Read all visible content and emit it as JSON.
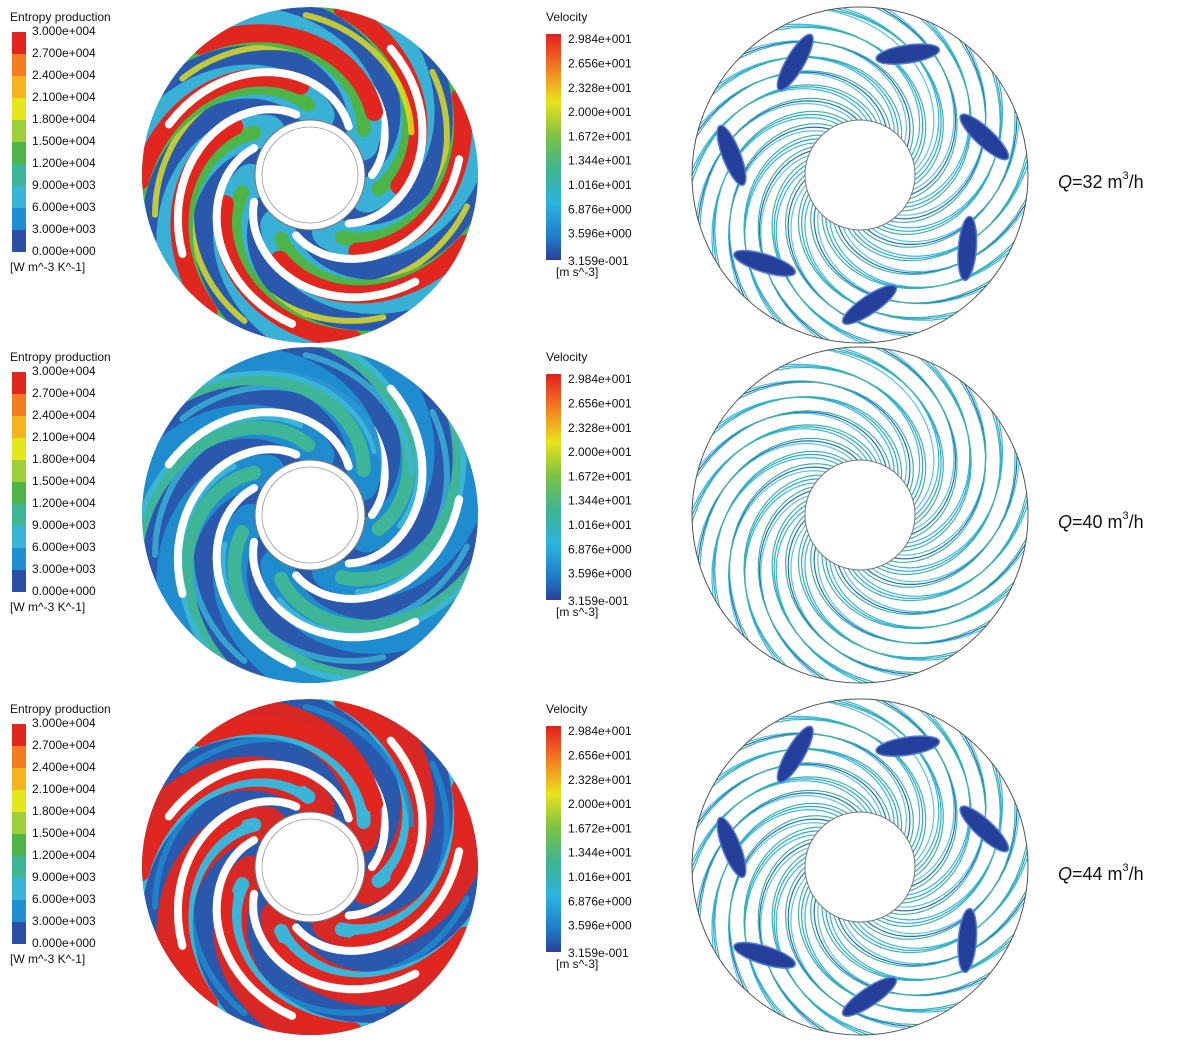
{
  "rows": [
    {
      "entropy_legend": {
        "title": "Entropy production",
        "labels": [
          "3.000e+004",
          "2.700e+004",
          "2.400e+004",
          "2.100e+004",
          "1.800e+004",
          "1.500e+004",
          "1.200e+004",
          "9.000e+003",
          "6.000e+003",
          "3.000e+003",
          "0.000e+000"
        ],
        "unit": "[W m^-3 K^-1]"
      },
      "velocity_legend": {
        "title": "Velocity",
        "labels": [
          "2.984e+001",
          "2.656e+001",
          "2.328e+001",
          "2.000e+001",
          "1.672e+001",
          "1.344e+001",
          "1.016e+001",
          "6.876e+000",
          "3.596e+000",
          "3.159e-001"
        ],
        "unit": "[m s^-3]"
      },
      "condition": {
        "symbol": "Q",
        "text": "=32 m",
        "sup": "3",
        "tail": "/h"
      }
    },
    {
      "entropy_legend": {
        "title": "Entropy production",
        "labels": [
          "3.000e+004",
          "2.700e+004",
          "2.400e+004",
          "2.100e+004",
          "1.800e+004",
          "1.500e+004",
          "1.200e+004",
          "9.000e+003",
          "6.000e+003",
          "3.000e+003",
          "0.000e+000"
        ],
        "unit": "[W m^-3 K^-1]"
      },
      "velocity_legend": {
        "title": "Velocity",
        "labels": [
          "2.984e+001",
          "2.656e+001",
          "2.328e+001",
          "2.000e+001",
          "1.672e+001",
          "1.344e+001",
          "1.016e+001",
          "6.876e+000",
          "3.596e+000",
          "3.159e-001"
        ],
        "unit": "[m s^-3]"
      },
      "condition": {
        "symbol": "Q",
        "text": "=40 m",
        "sup": "3",
        "tail": "/h"
      }
    },
    {
      "entropy_legend": {
        "title": "Entropy production",
        "labels": [
          "3.000e+004",
          "2.700e+004",
          "2.400e+004",
          "2.100e+004",
          "1.800e+004",
          "1.500e+004",
          "1.200e+004",
          "9.000e+003",
          "6.000e+003",
          "3.000e+003",
          "0.000e+000"
        ],
        "unit": "[W m^-3 K^-1]"
      },
      "velocity_legend": {
        "title": "Velocity",
        "labels": [
          "2.984e+001",
          "2.656e+001",
          "2.328e+001",
          "2.000e+001",
          "1.672e+001",
          "1.344e+001",
          "1.016e+001",
          "6.876e+000",
          "3.596e+000",
          "3.159e-001"
        ],
        "unit": "[m s^-3]"
      },
      "condition": {
        "symbol": "Q",
        "text": "=44 m",
        "sup": "3",
        "tail": "/h"
      }
    }
  ]
}
